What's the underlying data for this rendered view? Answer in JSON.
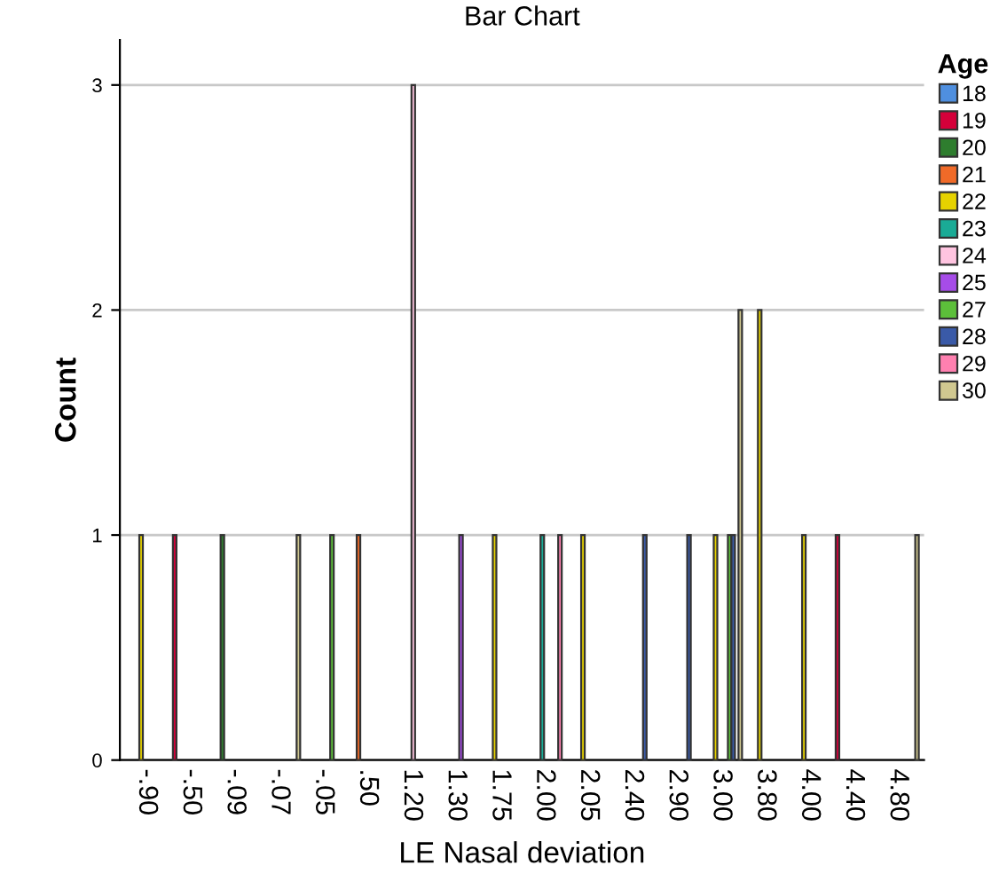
{
  "chart_data": {
    "type": "bar",
    "title": "Bar Chart",
    "xlabel": "LE Nasal deviation",
    "ylabel": "Count",
    "legend_title": "Age",
    "legend": "right",
    "categories": [
      "-.90",
      "-.50",
      "-.09",
      "-.07",
      "-.05",
      ".50",
      "1.20",
      "1.30",
      "1.75",
      "2.00",
      "2.05",
      "2.40",
      "2.90",
      "3.00",
      "3.80",
      "4.00",
      "4.40",
      "4.80"
    ],
    "ylim": [
      0,
      3.2
    ],
    "yticks": [
      0,
      1,
      2,
      3
    ],
    "grid": "y",
    "series": [
      {
        "name": "18",
        "color": "#4f8fdf",
        "values": [
          null,
          null,
          null,
          null,
          null,
          null,
          null,
          null,
          null,
          null,
          null,
          null,
          null,
          null,
          null,
          null,
          null,
          null
        ]
      },
      {
        "name": "19",
        "color": "#d4003a",
        "values": [
          null,
          1,
          null,
          null,
          null,
          null,
          null,
          null,
          null,
          null,
          null,
          null,
          null,
          null,
          null,
          null,
          1,
          null
        ]
      },
      {
        "name": "20",
        "color": "#2e7d2e",
        "values": [
          null,
          null,
          1,
          null,
          null,
          null,
          null,
          null,
          null,
          null,
          null,
          null,
          null,
          null,
          null,
          null,
          null,
          null
        ]
      },
      {
        "name": "21",
        "color": "#f06a28",
        "values": [
          null,
          null,
          null,
          null,
          null,
          1,
          null,
          null,
          null,
          null,
          null,
          null,
          null,
          null,
          null,
          null,
          null,
          null
        ]
      },
      {
        "name": "22",
        "color": "#e6d200",
        "values": [
          1,
          null,
          null,
          null,
          null,
          null,
          null,
          null,
          1,
          null,
          1,
          null,
          null,
          1,
          2,
          1,
          null,
          null
        ]
      },
      {
        "name": "23",
        "color": "#1aab96",
        "values": [
          null,
          null,
          null,
          null,
          null,
          null,
          null,
          null,
          null,
          1,
          null,
          null,
          null,
          null,
          null,
          null,
          null,
          null
        ]
      },
      {
        "name": "24",
        "color": "#ffc4e0",
        "values": [
          null,
          null,
          null,
          null,
          null,
          null,
          3,
          null,
          null,
          null,
          null,
          null,
          null,
          null,
          null,
          null,
          null,
          null
        ]
      },
      {
        "name": "25",
        "color": "#a64ce8",
        "values": [
          null,
          null,
          null,
          null,
          null,
          null,
          null,
          1,
          null,
          null,
          null,
          null,
          null,
          null,
          null,
          null,
          null,
          null
        ]
      },
      {
        "name": "27",
        "color": "#5cbf3a",
        "values": [
          null,
          null,
          null,
          null,
          1,
          null,
          null,
          null,
          null,
          null,
          null,
          null,
          null,
          1,
          null,
          null,
          null,
          null
        ]
      },
      {
        "name": "28",
        "color": "#3a5aa8",
        "values": [
          null,
          null,
          null,
          null,
          null,
          null,
          null,
          null,
          null,
          null,
          null,
          1,
          1,
          1,
          null,
          null,
          null,
          null
        ]
      },
      {
        "name": "29",
        "color": "#ff80b0",
        "values": [
          null,
          null,
          null,
          null,
          null,
          null,
          null,
          null,
          null,
          1,
          null,
          null,
          null,
          null,
          null,
          null,
          null,
          null
        ]
      },
      {
        "name": "30",
        "color": "#d0c890",
        "values": [
          null,
          null,
          null,
          1,
          null,
          null,
          null,
          null,
          null,
          null,
          null,
          null,
          null,
          2,
          null,
          null,
          null,
          1
        ]
      }
    ]
  }
}
